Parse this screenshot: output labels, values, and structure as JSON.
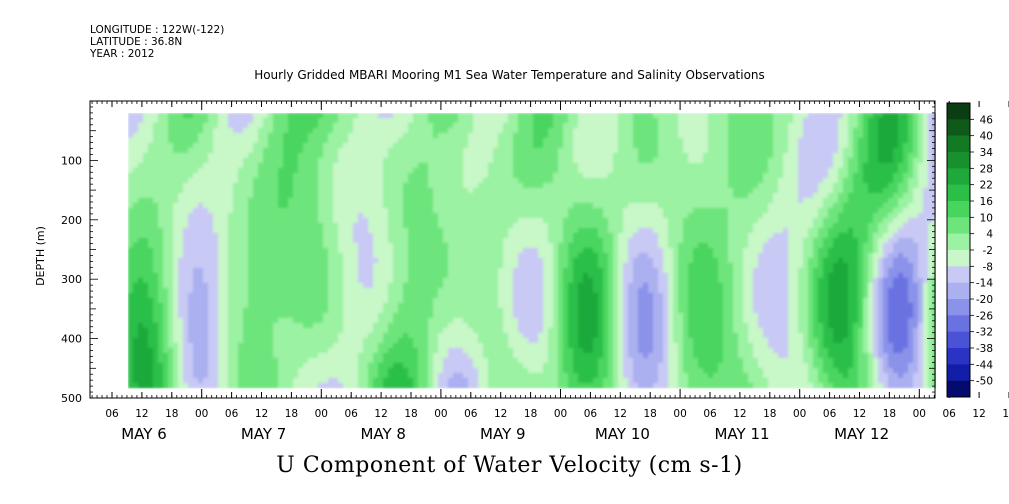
{
  "header": {
    "longitude": "LONGITUDE : 122W(-122)",
    "latitude": "LATITUDE : 36.8N",
    "year": "YEAR : 2012"
  },
  "chart_data": {
    "type": "heatmap",
    "title": "Hourly Gridded MBARI Mooring M1 Sea Water Temperature and Salinity Observations",
    "bottom_title": "U Component of Water Velocity (cm s-1)",
    "ylabel": "DEPTH (m)",
    "ylim": [
      500,
      0
    ],
    "y_ticks": [
      "100",
      "200",
      "300",
      "400",
      "500"
    ],
    "x_hour_ticks": [
      "06",
      "12",
      "18",
      "00",
      "06",
      "12",
      "18",
      "00",
      "06",
      "12",
      "18",
      "00",
      "06",
      "12",
      "18",
      "00",
      "06",
      "12",
      "18",
      "00",
      "06",
      "12",
      "18",
      "00",
      "06",
      "12",
      "18",
      "00",
      "06",
      "12",
      "18",
      "00"
    ],
    "x_day_labels": [
      "MAY  6",
      "MAY  7",
      "MAY  8",
      "MAY  9",
      "MAY 10",
      "MAY 11",
      "MAY 12"
    ],
    "data_depth_range_m": [
      20,
      480
    ],
    "colorbar": {
      "levels": [
        46,
        40,
        34,
        28,
        22,
        16,
        10,
        4,
        -2,
        -8,
        -14,
        -20,
        -26,
        -32,
        -38,
        -44,
        -50
      ],
      "colors": [
        "#0b3d12",
        "#0f5a1a",
        "#137a24",
        "#18902e",
        "#1ea93a",
        "#2cbf48",
        "#48d55e",
        "#6ee57c",
        "#9af2a2",
        "#c8f7c8",
        "#c9c9f5",
        "#aab0f0",
        "#8a92ea",
        "#6a72e2",
        "#4a52d6",
        "#2a34c4",
        "#121ea8",
        "#050a6e"
      ]
    }
  }
}
